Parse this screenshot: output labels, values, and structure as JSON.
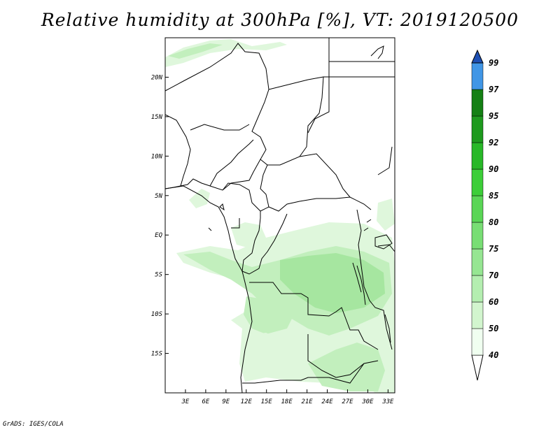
{
  "title": "Relative humidity at 300hPa [%], VT: 2019120500",
  "credit": "GrADS: IGES/COLA",
  "map": {
    "lon_range": [
      0,
      34
    ],
    "lat_range": [
      -20,
      25
    ],
    "lon_ticks": [
      {
        "value": 3,
        "label": "3E"
      },
      {
        "value": 6,
        "label": "6E"
      },
      {
        "value": 9,
        "label": "9E"
      },
      {
        "value": 12,
        "label": "12E"
      },
      {
        "value": 15,
        "label": "15E"
      },
      {
        "value": 18,
        "label": "18E"
      },
      {
        "value": 21,
        "label": "21E"
      },
      {
        "value": 24,
        "label": "24E"
      },
      {
        "value": 27,
        "label": "27E"
      },
      {
        "value": 30,
        "label": "30E"
      },
      {
        "value": 33,
        "label": "33E"
      }
    ],
    "lat_ticks": [
      {
        "value": 20,
        "label": "20N"
      },
      {
        "value": 15,
        "label": "15N"
      },
      {
        "value": 10,
        "label": "10N"
      },
      {
        "value": 5,
        "label": "5N"
      },
      {
        "value": 0,
        "label": "EQ"
      },
      {
        "value": -5,
        "label": "5S"
      },
      {
        "value": -10,
        "label": "10S"
      },
      {
        "value": -15,
        "label": "15S"
      }
    ]
  },
  "colorbar": {
    "levels": [
      "40",
      "50",
      "60",
      "70",
      "75",
      "80",
      "85",
      "90",
      "92",
      "95",
      "97",
      "99"
    ],
    "colors": [
      "#f0fff0",
      "#d2f5ce",
      "#b4eeb0",
      "#96e692",
      "#78de74",
      "#5ad656",
      "#3cce38",
      "#28b828",
      "#1e9a1e",
      "#148014",
      "#4096e6",
      "#2a72d2",
      "#1e50b4"
    ],
    "under_color": "#ffffff"
  },
  "colors": {
    "border": "#000000",
    "field_light": "#dff7dc",
    "field_mid": "#c2efbd",
    "field_dark": "#a6e6a0"
  }
}
